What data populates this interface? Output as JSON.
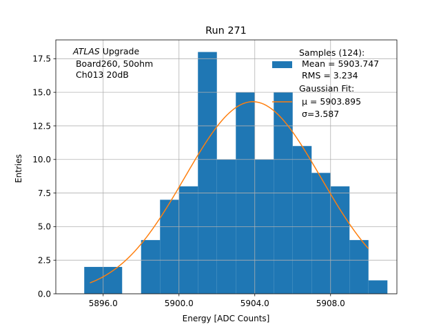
{
  "chart_data": {
    "type": "bar",
    "title": "Run 271",
    "xlabel": "Energy [ADC Counts]",
    "ylabel": "Entries",
    "xlim": [
      5893.5,
      5911.5
    ],
    "ylim": [
      0,
      18.9
    ],
    "grid": true,
    "xticks": [
      5896,
      5900,
      5904,
      5908
    ],
    "xtick_labels": [
      "5896.0",
      "5900.0",
      "5904.0",
      "5908.0"
    ],
    "yticks": [
      0,
      2.5,
      5,
      7.5,
      10,
      12.5,
      15,
      17.5
    ],
    "ytick_labels": [
      "0.0",
      "2.5",
      "5.0",
      "7.5",
      "10.0",
      "12.5",
      "15.0",
      "17.5"
    ],
    "histogram": {
      "name": "Samples (124)",
      "bin_width": 1,
      "bin_lefts": [
        5895,
        5896,
        5898,
        5899,
        5900,
        5901,
        5902,
        5903,
        5904,
        5905,
        5906,
        5907,
        5908,
        5909,
        5910
      ],
      "counts": [
        2,
        2,
        4,
        7,
        8,
        18,
        10,
        15,
        10,
        15,
        11,
        9,
        8,
        4,
        1
      ],
      "color": "#1f77b4"
    },
    "gaussian_fit": {
      "name": "Gaussian Fit",
      "mu": 5903.895,
      "sigma": 3.587,
      "amplitude": 14.3,
      "x_range": [
        5895.3,
        5910.0
      ],
      "color": "#ff7f0e"
    },
    "annotation": {
      "experiment": "ATLAS",
      "experiment_suffix": " Upgrade",
      "line2": " Board260, 50ohm",
      "line3": " Ch013 20dB"
    },
    "legend": {
      "placement": "top-right",
      "samples_title": "Samples (124):",
      "samples_mean": " Mean = 5903.747",
      "samples_rms": " RMS = 3.234",
      "fit_title": "Gaussian Fit:",
      "fit_mu": "μ = 5903.895",
      "fit_sigma": "σ=3.587"
    }
  }
}
